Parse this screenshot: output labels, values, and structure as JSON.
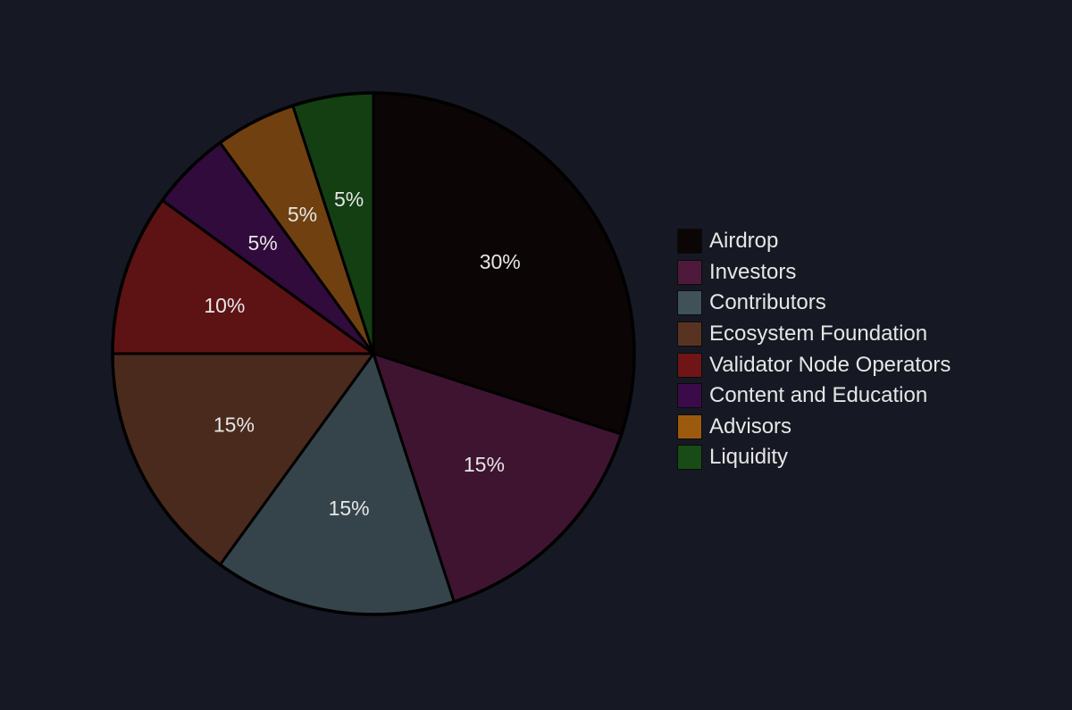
{
  "chart_data": {
    "type": "pie",
    "title": "",
    "start": "12 o'clock",
    "direction": "clockwise",
    "legend_position": "right",
    "slices": [
      {
        "label": "Airdrop",
        "value": 30,
        "display": "30%",
        "color": "#0b0506"
      },
      {
        "label": "Investors",
        "value": 15,
        "display": "15%",
        "color": "#3f1431"
      },
      {
        "label": "Contributors",
        "value": 15,
        "display": "15%",
        "color": "#35444b"
      },
      {
        "label": "Ecosystem Foundation",
        "value": 15,
        "display": "15%",
        "color": "#4a2a1d"
      },
      {
        "label": "Validator Node Operators",
        "value": 10,
        "display": "10%",
        "color": "#5d1214"
      },
      {
        "label": "Content and Education",
        "value": 5,
        "display": "5%",
        "color": "#310b3c"
      },
      {
        "label": "Advisors",
        "value": 5,
        "display": "5%",
        "color": "#704010"
      },
      {
        "label": "Liquidity",
        "value": 5,
        "display": "5%",
        "color": "#133f12"
      }
    ]
  },
  "legend": {
    "items": [
      {
        "label": "Airdrop",
        "color": "#0b0506"
      },
      {
        "label": "Investors",
        "color": "#4d1a3c"
      },
      {
        "label": "Contributors",
        "color": "#405159"
      },
      {
        "label": "Ecosystem Foundation",
        "color": "#593322"
      },
      {
        "label": "Validator Node Operators",
        "color": "#6f1516"
      },
      {
        "label": "Content and Education",
        "color": "#3a0b48"
      },
      {
        "label": "Advisors",
        "color": "#9c5a0f"
      },
      {
        "label": "Liquidity",
        "color": "#184c16"
      }
    ]
  },
  "theme": {
    "background": "#161923",
    "text_color": "#e6e6e6"
  }
}
